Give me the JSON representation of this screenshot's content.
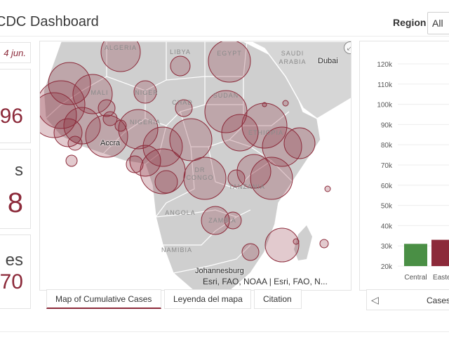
{
  "header": {
    "title": "CDC Dashboard",
    "region_label": "Region",
    "region_value": "All"
  },
  "sidebar": {
    "date": "4 jun.",
    "cards": [
      {
        "label": "",
        "value": "96"
      },
      {
        "label": "s",
        "value": "8"
      },
      {
        "label": "es",
        "value": "70"
      }
    ]
  },
  "map": {
    "country_labels": [
      "ALGERIA",
      "LIBYA",
      "EGYPT",
      "SAUDI ARABIA",
      "MALI",
      "NIGER",
      "CHAD",
      "SUDAN",
      "NIGERIA",
      "ETHIOPIA",
      "DR CONGO",
      "TANZANIA",
      "ANGOLA",
      "ZAMBIA",
      "NAMIBIA"
    ],
    "city_labels": [
      "Dubai",
      "Accra",
      "Johannesburg"
    ],
    "attribution": "Esri, FAO, NOAA | Esri, FAO, N...",
    "expand_icon": "expand-icon",
    "circle_color": "#8c2a3a"
  },
  "tabs": [
    {
      "label": "Map of Cumulative Cases",
      "active": true
    },
    {
      "label": "Leyenda del mapa",
      "active": false
    },
    {
      "label": "Citation",
      "active": false
    }
  ],
  "chart_data": {
    "type": "bar",
    "categories": [
      "Central",
      "Easter"
    ],
    "values": [
      31000,
      33000
    ],
    "colors": [
      "#4a8f45",
      "#8c2a3a"
    ],
    "yticks": [
      "20k",
      "30k",
      "40k",
      "50k",
      "60k",
      "70k",
      "80k",
      "90k",
      "100k",
      "110k",
      "120k"
    ],
    "ylim": [
      20000,
      120000
    ],
    "xlabel": "Cases"
  },
  "chart_nav": {
    "label": "Cases",
    "arrow_icon": "chevron-left-icon"
  }
}
